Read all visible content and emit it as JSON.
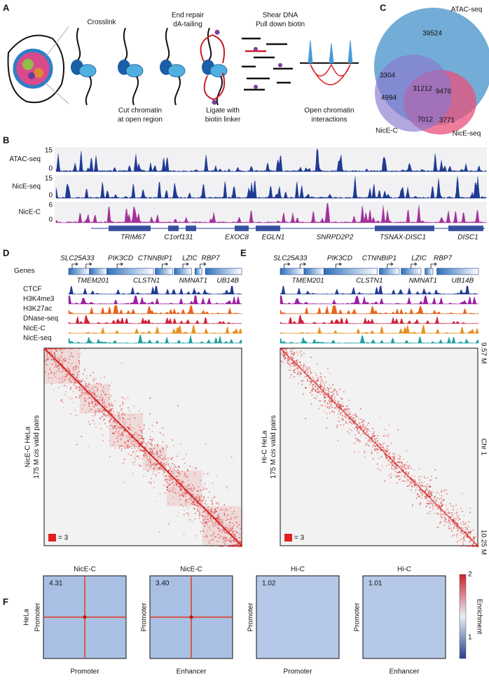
{
  "panel_a": {
    "label": "A",
    "crosslink": "Crosslink",
    "end_repair": [
      "End repair",
      "dA-tailing"
    ],
    "shear": [
      "Shear DNA",
      "Pull down biotin"
    ],
    "cut": [
      "Cut chromatin",
      "at open region"
    ],
    "ligate": [
      "Ligate with",
      "biotin linker"
    ],
    "interactions": [
      "Open chromatin",
      "interactions"
    ]
  },
  "panel_b": {
    "label": "B",
    "tracks": [
      {
        "name": "ATAC-seq",
        "ymax": "15",
        "ymin": "0"
      },
      {
        "name": "NicE-seq",
        "ymax": "15",
        "ymin": "0"
      },
      {
        "name": "NicE-C",
        "ymax": "6",
        "ymin": "0"
      }
    ],
    "genes": [
      "TRIM67",
      "C1orf131",
      "EXOC8",
      "EGLN1",
      "SNRPD2P2",
      "TSNAX-DISC1",
      "DISC1"
    ]
  },
  "panel_c": {
    "label": "C",
    "sets": [
      "ATAC-seq",
      "NicE-C",
      "NicE-seq"
    ],
    "regions": [
      "39524",
      "3304",
      "4994",
      "31212",
      "9476",
      "7012",
      "3771"
    ]
  },
  "panel_d": {
    "label": "D",
    "genes_label": "Genes",
    "genes_top": [
      "SLC25A33",
      "PIK3CD",
      "CTNNBIP1",
      "LZIC",
      "RBP7"
    ],
    "genes_bottom": [
      "TMEM201",
      "CLSTN1",
      "NMNAT1",
      "UB14B"
    ],
    "tracks": [
      "CTCF",
      "H3K4me3",
      "H3K27ac",
      "DNase-seq",
      "NicE-C",
      "NicE-seq"
    ],
    "ylabel": [
      "NicE-C HeLa",
      [
        "175 M",
        "cis",
        "valid pairs"
      ]
    ],
    "scale_label": "= 3"
  },
  "panel_e": {
    "label": "E",
    "genes_top": [
      "SLC25A33",
      "PIK3CD",
      "CTNNBIP1",
      "LZIC",
      "RBP7"
    ],
    "genes_bottom": [
      "TMEM201",
      "CLSTN1",
      "NMNAT1",
      "UB14B"
    ],
    "ylabel": [
      "Hi-C HeLa",
      [
        "175 M",
        "cis",
        "valid pairs"
      ]
    ],
    "scale_label": "= 3",
    "coords": [
      "9.57 M",
      "Chr 1",
      "10.25 M"
    ]
  },
  "panel_f": {
    "label": "F",
    "titles": [
      "NicE-C",
      "NicE-C",
      "Hi-C",
      "Hi-C"
    ],
    "scores": [
      "4.31",
      "3.40",
      "1.02",
      "1.01"
    ],
    "row_label": "HeLa",
    "ylabels": [
      "Promoter",
      "Promoter",
      "Promoter",
      "Promoter"
    ],
    "xlabels": [
      "Promoter",
      "Enhancer",
      "Promoter",
      "Enhancer"
    ],
    "colorbar_label": "Enrichment",
    "colorbar_ticks": [
      "2",
      "1"
    ]
  }
}
